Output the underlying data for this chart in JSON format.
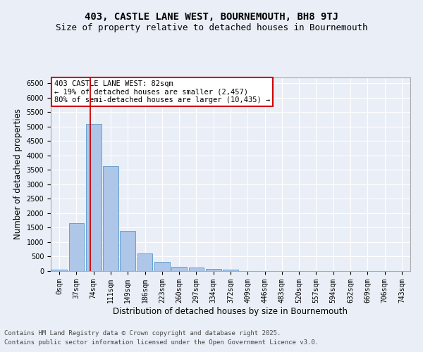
{
  "title_line1": "403, CASTLE LANE WEST, BOURNEMOUTH, BH8 9TJ",
  "title_line2": "Size of property relative to detached houses in Bournemouth",
  "xlabel": "Distribution of detached houses by size in Bournemouth",
  "ylabel": "Number of detached properties",
  "footnote1": "Contains HM Land Registry data © Crown copyright and database right 2025.",
  "footnote2": "Contains public sector information licensed under the Open Government Licence v3.0.",
  "bar_labels": [
    "0sqm",
    "37sqm",
    "74sqm",
    "111sqm",
    "149sqm",
    "186sqm",
    "223sqm",
    "260sqm",
    "297sqm",
    "334sqm",
    "372sqm",
    "409sqm",
    "446sqm",
    "483sqm",
    "520sqm",
    "557sqm",
    "594sqm",
    "632sqm",
    "669sqm",
    "706sqm",
    "743sqm"
  ],
  "bar_values": [
    55,
    1650,
    5100,
    3620,
    1400,
    610,
    310,
    150,
    110,
    70,
    40,
    0,
    0,
    0,
    0,
    0,
    0,
    0,
    0,
    0,
    0
  ],
  "bar_color": "#aec6e8",
  "bar_edge_color": "#5599cc",
  "vline_x": 1.82,
  "vline_color": "#cc0000",
  "annotation_text": "403 CASTLE LANE WEST: 82sqm\n← 19% of detached houses are smaller (2,457)\n80% of semi-detached houses are larger (10,435) →",
  "annotation_box_color": "#cc0000",
  "ylim": [
    0,
    6700
  ],
  "yticks": [
    0,
    500,
    1000,
    1500,
    2000,
    2500,
    3000,
    3500,
    4000,
    4500,
    5000,
    5500,
    6000,
    6500
  ],
  "bg_color": "#eaeff7",
  "plot_bg_color": "#eaeff7",
  "grid_color": "#ffffff",
  "title_fontsize": 10,
  "subtitle_fontsize": 9,
  "axis_label_fontsize": 8.5,
  "tick_fontsize": 7,
  "annot_fontsize": 7.5,
  "footnote_fontsize": 6.5
}
